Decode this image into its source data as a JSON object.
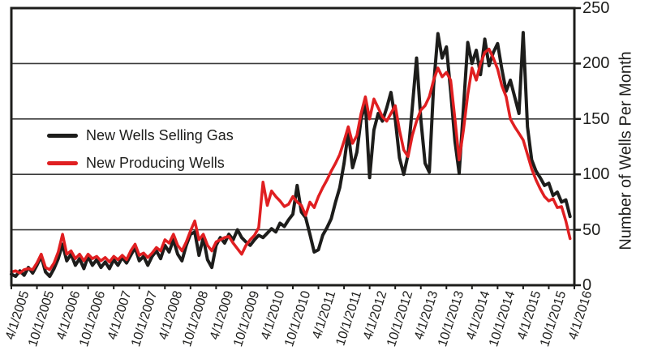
{
  "chart_data": {
    "type": "line",
    "title": "",
    "xlabel": "",
    "ylabel": "Number of Wells Per Month",
    "ylim": [
      0,
      250
    ],
    "y_ticks": [
      0,
      50,
      100,
      150,
      200,
      250
    ],
    "grid": "horizontal",
    "legend_position": "inside-left",
    "x_start": "4/1/2005",
    "x_frequency": "monthly",
    "total_months": 132,
    "x_tick_interval_months": 6,
    "x_tick_labels": [
      "4/1/2005",
      "10/1/2005",
      "4/1/2006",
      "10/1/2006",
      "4/1/2007",
      "10/1/2007",
      "4/1/2008",
      "10/1/2008",
      "4/1/2009",
      "10/1/2009",
      "4/1/2010",
      "10/1/2010",
      "4/1/2011",
      "10/1/2011",
      "4/1/2012",
      "10/1/2012",
      "4/1/2013",
      "10/1/2013",
      "4/1/2014",
      "10/1/2014",
      "4/1/2015",
      "10/1/2015",
      "4/1/2016"
    ],
    "series": [
      {
        "name": "New Wells Selling Gas",
        "color": "#1d1d1b",
        "values": [
          10,
          8,
          13,
          9,
          16,
          11,
          18,
          26,
          12,
          8,
          15,
          24,
          37,
          22,
          28,
          18,
          24,
          15,
          26,
          18,
          23,
          16,
          21,
          15,
          23,
          18,
          25,
          20,
          27,
          34,
          22,
          26,
          18,
          26,
          31,
          24,
          36,
          30,
          41,
          28,
          22,
          36,
          46,
          48,
          27,
          43,
          23,
          16,
          36,
          43,
          38,
          46,
          41,
          50,
          43,
          39,
          36,
          41,
          45,
          43,
          47,
          51,
          48,
          56,
          53,
          59,
          64,
          90,
          66,
          61,
          46,
          30,
          32,
          45,
          52,
          60,
          75,
          88,
          110,
          138,
          106,
          120,
          150,
          164,
          97,
          140,
          155,
          148,
          160,
          174,
          150,
          115,
          100,
          118,
          160,
          205,
          150,
          110,
          102,
          180,
          227,
          205,
          215,
          175,
          130,
          101,
          160,
          219,
          200,
          212,
          190,
          222,
          198,
          210,
          218,
          195,
          175,
          185,
          170,
          155,
          228,
          143,
          113,
          103,
          97,
          90,
          92,
          81,
          84,
          75,
          77,
          62
        ]
      },
      {
        "name": "New Producing Wells",
        "color": "#e01f21",
        "values": [
          12,
          13,
          11,
          14,
          15,
          14,
          20,
          28,
          16,
          14,
          20,
          30,
          46,
          28,
          31,
          24,
          28,
          22,
          28,
          24,
          26,
          22,
          25,
          21,
          26,
          23,
          27,
          23,
          31,
          37,
          27,
          29,
          25,
          29,
          34,
          31,
          41,
          38,
          46,
          36,
          31,
          39,
          49,
          58,
          41,
          46,
          36,
          31,
          39,
          41,
          43,
          44,
          38,
          33,
          28,
          36,
          41,
          45,
          52,
          93,
          72,
          85,
          80,
          76,
          71,
          73,
          80,
          75,
          72,
          63,
          75,
          70,
          80,
          88,
          95,
          103,
          110,
          118,
          130,
          143,
          128,
          135,
          155,
          170,
          150,
          168,
          160,
          152,
          148,
          155,
          162,
          140,
          122,
          116,
          135,
          148,
          158,
          162,
          170,
          185,
          196,
          188,
          192,
          185,
          150,
          113,
          140,
          172,
          196,
          185,
          200,
          210,
          213,
          205,
          195,
          180,
          170,
          150,
          143,
          137,
          131,
          118,
          105,
          95,
          87,
          80,
          76,
          78,
          70,
          71,
          58,
          42
        ]
      }
    ],
    "axis_color": "#1d1d1b",
    "gridline_color": "#3a3a3a"
  }
}
